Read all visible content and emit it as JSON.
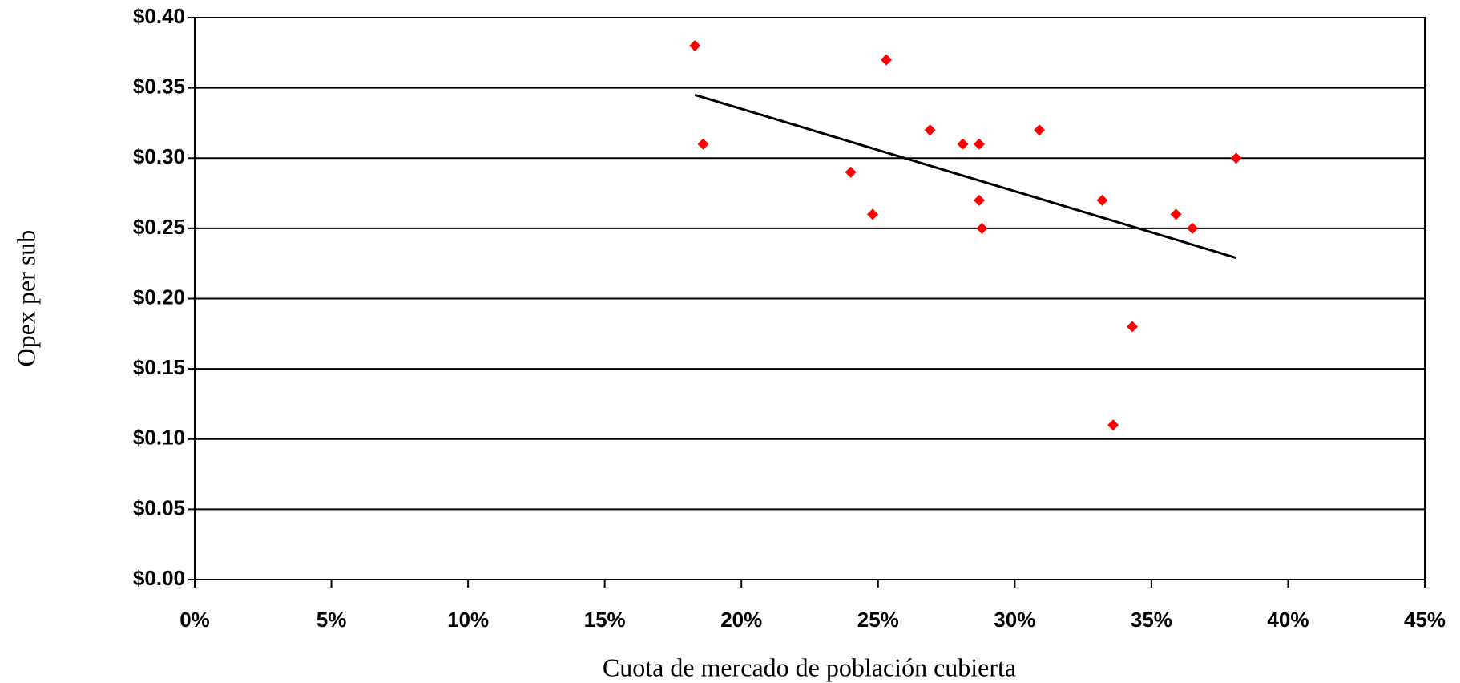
{
  "chart_data": {
    "type": "scatter",
    "x_label": "Cuota de mercado de población cubierta",
    "y_label": "Opex per sub",
    "x": [
      18.3,
      18.6,
      25.3,
      24.0,
      24.8,
      26.9,
      28.1,
      28.7,
      28.7,
      28.8,
      30.9,
      33.2,
      34.3,
      33.6,
      35.9,
      36.5,
      38.1
    ],
    "values": [
      0.38,
      0.31,
      0.37,
      0.29,
      0.26,
      0.32,
      0.31,
      0.31,
      0.27,
      0.25,
      0.32,
      0.27,
      0.18,
      0.11,
      0.26,
      0.25,
      0.3
    ],
    "color": "#ff0000",
    "trendline": {
      "x": [
        18.3,
        38.1
      ],
      "y": [
        0.345,
        0.229
      ],
      "color": "#000000"
    },
    "xlim": [
      0,
      45
    ],
    "xticks": [
      {
        "value": 0,
        "label": "0%"
      },
      {
        "value": 5,
        "label": "5%"
      },
      {
        "value": 10,
        "label": "10%"
      },
      {
        "value": 15,
        "label": "15%"
      },
      {
        "value": 20,
        "label": "20%"
      },
      {
        "value": 25,
        "label": "25%"
      },
      {
        "value": 30,
        "label": "30%"
      },
      {
        "value": 35,
        "label": "35%"
      },
      {
        "value": 40,
        "label": "40%"
      },
      {
        "value": 45,
        "label": "45%"
      }
    ],
    "ylim": [
      0,
      0.4
    ],
    "yticks": [
      {
        "value": 0,
        "label": "$0.00"
      },
      {
        "value": 0.05,
        "label": "$0.05"
      },
      {
        "value": 0.1,
        "label": "$0.10"
      },
      {
        "value": 0.15,
        "label": "$0.15"
      },
      {
        "value": 0.2,
        "label": "$0.20"
      },
      {
        "value": 0.25,
        "label": "$0.25"
      },
      {
        "value": 0.3,
        "label": "$0.30"
      },
      {
        "value": 0.35,
        "label": "$0.35"
      },
      {
        "value": 0.4,
        "label": "$0.40"
      }
    ],
    "grid": true
  }
}
